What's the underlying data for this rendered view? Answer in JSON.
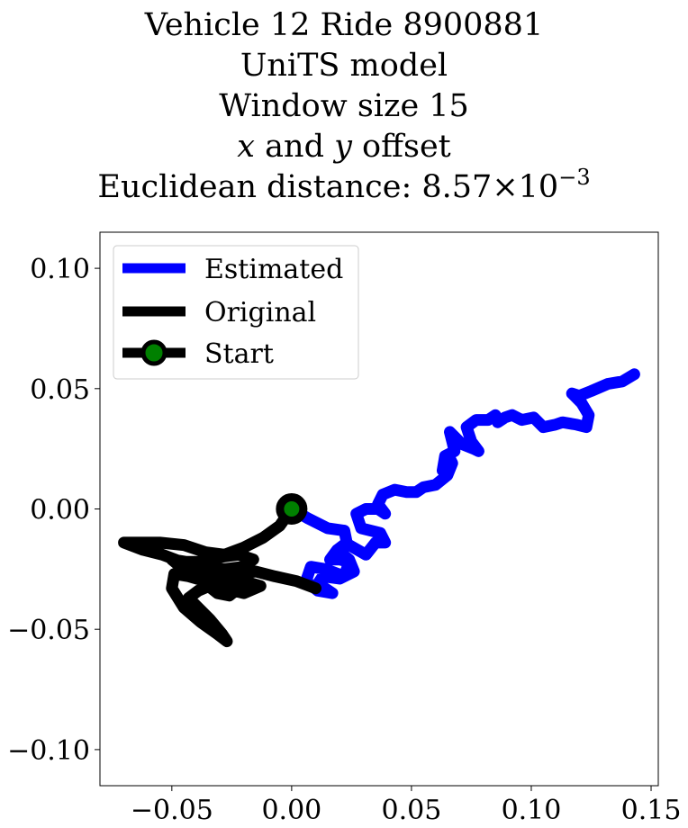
{
  "chart_data": {
    "type": "line",
    "title_lines": [
      "Vehicle 12 Ride 8900881",
      "UniTS model",
      "Window size 15"
    ],
    "offset_line": {
      "x_var": "x",
      "connector": "and",
      "y_var": "y",
      "suffix": "offset"
    },
    "distance_line": {
      "prefix": "Euclidean distance: 8.57",
      "times": "×",
      "base": "10",
      "exponent": "−3"
    },
    "xlim": [
      -0.08,
      0.153
    ],
    "ylim": [
      -0.115,
      0.115
    ],
    "xticks": [
      -0.05,
      0.0,
      0.05,
      0.1,
      0.15
    ],
    "xtick_labels": [
      "−0.05",
      "0.00",
      "0.05",
      "0.10",
      "0.15"
    ],
    "yticks": [
      -0.1,
      -0.05,
      0.0,
      0.05,
      0.1
    ],
    "ytick_labels": [
      "−0.10",
      "−0.05",
      "0.00",
      "0.05",
      "0.10"
    ],
    "grid": false,
    "legend": {
      "placement": "top-left",
      "entries": [
        "Estimated",
        "Original",
        "Start"
      ]
    },
    "colors": {
      "estimated": "#0000ff",
      "original": "#000000",
      "start_marker_face": "#008000",
      "start_marker_edge": "#000000"
    },
    "series": [
      {
        "name": "Estimated",
        "x": [
          0.0,
          0.007,
          0.015,
          0.022,
          0.023,
          0.019,
          0.016,
          0.02,
          0.024,
          0.022,
          0.014,
          0.008,
          0.006,
          0.011,
          0.017,
          0.011,
          0.013,
          0.02,
          0.026,
          0.024,
          0.019,
          0.024,
          0.031,
          0.035,
          0.039,
          0.037,
          0.029,
          0.027,
          0.031,
          0.036,
          0.039,
          0.036,
          0.038,
          0.043,
          0.048,
          0.052,
          0.055,
          0.06,
          0.065,
          0.067,
          0.066,
          0.063,
          0.064,
          0.068,
          0.067,
          0.066,
          0.071,
          0.076,
          0.078,
          0.075,
          0.073,
          0.077,
          0.082,
          0.085,
          0.086,
          0.089,
          0.092,
          0.096,
          0.101,
          0.105,
          0.11,
          0.113,
          0.119,
          0.123,
          0.124,
          0.121,
          0.118,
          0.117,
          0.12,
          0.125,
          0.132,
          0.138,
          0.143
        ],
        "y": [
          0.0,
          -0.004,
          -0.008,
          -0.009,
          -0.014,
          -0.017,
          -0.021,
          -0.021,
          -0.022,
          -0.028,
          -0.025,
          -0.024,
          -0.03,
          -0.034,
          -0.035,
          -0.031,
          -0.028,
          -0.029,
          -0.026,
          -0.021,
          -0.017,
          -0.015,
          -0.019,
          -0.014,
          -0.014,
          -0.01,
          -0.008,
          -0.002,
          0.0,
          0.0,
          -0.002,
          0.002,
          0.006,
          0.008,
          0.007,
          0.007,
          0.009,
          0.01,
          0.014,
          0.019,
          0.021,
          0.016,
          0.022,
          0.024,
          0.028,
          0.032,
          0.027,
          0.025,
          0.024,
          0.028,
          0.034,
          0.037,
          0.037,
          0.039,
          0.036,
          0.038,
          0.039,
          0.037,
          0.038,
          0.034,
          0.035,
          0.036,
          0.035,
          0.034,
          0.039,
          0.044,
          0.047,
          0.048,
          0.047,
          0.049,
          0.052,
          0.053,
          0.056
        ]
      },
      {
        "name": "Original",
        "x": [
          0.0,
          -0.005,
          -0.012,
          -0.02,
          -0.028,
          -0.036,
          -0.045,
          -0.055,
          -0.064,
          -0.07,
          -0.062,
          -0.054,
          -0.046,
          -0.038,
          -0.03,
          -0.022,
          -0.016,
          -0.02,
          -0.028,
          -0.036,
          -0.044,
          -0.05,
          -0.044,
          -0.036,
          -0.028,
          -0.02,
          -0.013,
          -0.02,
          -0.028,
          -0.036,
          -0.043,
          -0.049,
          -0.05,
          -0.045,
          -0.038,
          -0.031,
          -0.027,
          -0.029,
          -0.034,
          -0.04,
          -0.043,
          -0.039,
          -0.032,
          -0.026,
          -0.021,
          -0.019,
          -0.021,
          -0.026,
          -0.031,
          -0.036,
          -0.04,
          -0.037,
          -0.03,
          -0.023,
          -0.015,
          -0.007,
          0.002,
          0.01
        ],
        "y": [
          0.0,
          -0.007,
          -0.012,
          -0.016,
          -0.019,
          -0.018,
          -0.015,
          -0.014,
          -0.014,
          -0.014,
          -0.017,
          -0.019,
          -0.022,
          -0.022,
          -0.02,
          -0.019,
          -0.021,
          -0.024,
          -0.025,
          -0.024,
          -0.022,
          -0.021,
          -0.026,
          -0.029,
          -0.03,
          -0.03,
          -0.032,
          -0.035,
          -0.033,
          -0.03,
          -0.028,
          -0.027,
          -0.033,
          -0.041,
          -0.047,
          -0.052,
          -0.055,
          -0.052,
          -0.046,
          -0.04,
          -0.037,
          -0.034,
          -0.031,
          -0.027,
          -0.025,
          -0.026,
          -0.032,
          -0.036,
          -0.035,
          -0.031,
          -0.027,
          -0.024,
          -0.025,
          -0.027,
          -0.026,
          -0.028,
          -0.03,
          -0.033
        ]
      }
    ],
    "start_point": {
      "x": 0.0,
      "y": 0.0
    }
  }
}
